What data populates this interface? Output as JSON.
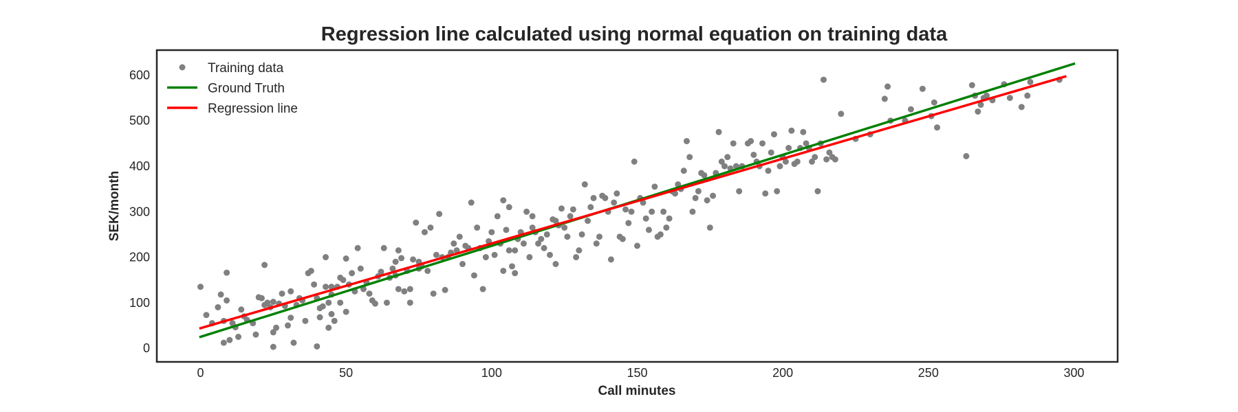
{
  "chart_data": {
    "type": "scatter",
    "title": "Regression line calculated using normal equation on training data",
    "xlabel": "Call minutes",
    "ylabel": "SEK/month",
    "xlim": [
      -15,
      315
    ],
    "ylim": [
      -30,
      655
    ],
    "x_ticks": [
      0,
      50,
      100,
      150,
      200,
      250,
      300
    ],
    "y_ticks": [
      0,
      100,
      200,
      300,
      400,
      500,
      600
    ],
    "grid": false,
    "legend_position": "top-left",
    "series": [
      {
        "name": "Training data",
        "kind": "scatter",
        "color": "#808080",
        "points": [
          [
            0,
            135
          ],
          [
            2,
            73
          ],
          [
            4,
            55
          ],
          [
            6,
            90
          ],
          [
            7,
            118
          ],
          [
            8,
            12
          ],
          [
            8,
            60
          ],
          [
            9,
            105
          ],
          [
            9,
            166
          ],
          [
            10,
            18
          ],
          [
            11,
            55
          ],
          [
            12,
            46
          ],
          [
            13,
            25
          ],
          [
            14,
            85
          ],
          [
            15,
            70
          ],
          [
            16,
            62
          ],
          [
            18,
            55
          ],
          [
            19,
            30
          ],
          [
            20,
            112
          ],
          [
            21,
            110
          ],
          [
            22,
            183
          ],
          [
            22,
            95
          ],
          [
            23,
            100
          ],
          [
            24,
            90
          ],
          [
            25,
            102
          ],
          [
            25,
            35
          ],
          [
            25,
            3
          ],
          [
            26,
            45
          ],
          [
            27,
            98
          ],
          [
            28,
            120
          ],
          [
            29,
            93
          ],
          [
            30,
            50
          ],
          [
            31,
            67
          ],
          [
            31,
            125
          ],
          [
            32,
            12
          ],
          [
            33,
            95
          ],
          [
            34,
            110
          ],
          [
            35,
            105
          ],
          [
            36,
            60
          ],
          [
            37,
            165
          ],
          [
            38,
            170
          ],
          [
            39,
            140
          ],
          [
            40,
            110
          ],
          [
            40,
            4
          ],
          [
            41,
            88
          ],
          [
            41,
            68
          ],
          [
            42,
            92
          ],
          [
            43,
            200
          ],
          [
            43,
            135
          ],
          [
            44,
            100
          ],
          [
            44,
            45
          ],
          [
            45,
            118
          ],
          [
            45,
            75
          ],
          [
            45,
            135
          ],
          [
            46,
            60
          ],
          [
            47,
            135
          ],
          [
            48,
            100
          ],
          [
            48,
            155
          ],
          [
            49,
            150
          ],
          [
            50,
            80
          ],
          [
            50,
            197
          ],
          [
            51,
            140
          ],
          [
            52,
            165
          ],
          [
            53,
            125
          ],
          [
            54,
            220
          ],
          [
            55,
            175
          ],
          [
            56,
            130
          ],
          [
            57,
            145
          ],
          [
            58,
            120
          ],
          [
            59,
            105
          ],
          [
            60,
            98
          ],
          [
            61,
            158
          ],
          [
            62,
            168
          ],
          [
            63,
            220
          ],
          [
            64,
            100
          ],
          [
            65,
            155
          ],
          [
            66,
            175
          ],
          [
            67,
            190
          ],
          [
            67,
            160
          ],
          [
            68,
            215
          ],
          [
            68,
            130
          ],
          [
            69,
            198
          ],
          [
            70,
            125
          ],
          [
            71,
            170
          ],
          [
            72,
            130
          ],
          [
            72,
            100
          ],
          [
            73,
            195
          ],
          [
            74,
            276
          ],
          [
            75,
            190
          ],
          [
            75,
            175
          ],
          [
            76,
            180
          ],
          [
            77,
            255
          ],
          [
            78,
            170
          ],
          [
            79,
            265
          ],
          [
            80,
            120
          ],
          [
            81,
            205
          ],
          [
            82,
            295
          ],
          [
            83,
            200
          ],
          [
            84,
            128
          ],
          [
            85,
            200
          ],
          [
            86,
            210
          ],
          [
            87,
            230
          ],
          [
            88,
            215
          ],
          [
            89,
            245
          ],
          [
            90,
            185
          ],
          [
            91,
            225
          ],
          [
            92,
            220
          ],
          [
            93,
            320
          ],
          [
            94,
            160
          ],
          [
            95,
            265
          ],
          [
            96,
            220
          ],
          [
            97,
            130
          ],
          [
            98,
            200
          ],
          [
            99,
            235
          ],
          [
            100,
            255
          ],
          [
            101,
            205
          ],
          [
            102,
            290
          ],
          [
            103,
            230
          ],
          [
            104,
            170
          ],
          [
            104,
            325
          ],
          [
            105,
            260
          ],
          [
            106,
            215
          ],
          [
            106,
            310
          ],
          [
            107,
            180
          ],
          [
            108,
            165
          ],
          [
            108,
            215
          ],
          [
            109,
            240
          ],
          [
            110,
            255
          ],
          [
            111,
            230
          ],
          [
            112,
            300
          ],
          [
            113,
            200
          ],
          [
            114,
            265
          ],
          [
            114,
            290
          ],
          [
            115,
            255
          ],
          [
            116,
            230
          ],
          [
            117,
            240
          ],
          [
            118,
            220
          ],
          [
            119,
            250
          ],
          [
            120,
            205
          ],
          [
            121,
            283
          ],
          [
            122,
            280
          ],
          [
            122,
            185
          ],
          [
            123,
            270
          ],
          [
            124,
            307
          ],
          [
            125,
            265
          ],
          [
            126,
            245
          ],
          [
            127,
            290
          ],
          [
            128,
            305
          ],
          [
            129,
            200
          ],
          [
            130,
            215
          ],
          [
            131,
            250
          ],
          [
            132,
            360
          ],
          [
            133,
            280
          ],
          [
            134,
            310
          ],
          [
            135,
            330
          ],
          [
            136,
            230
          ],
          [
            137,
            245
          ],
          [
            138,
            335
          ],
          [
            139,
            330
          ],
          [
            140,
            300
          ],
          [
            141,
            195
          ],
          [
            142,
            320
          ],
          [
            143,
            340
          ],
          [
            144,
            245
          ],
          [
            145,
            240
          ],
          [
            146,
            305
          ],
          [
            147,
            275
          ],
          [
            148,
            300
          ],
          [
            149,
            410
          ],
          [
            150,
            225
          ],
          [
            151,
            330
          ],
          [
            152,
            320
          ],
          [
            153,
            285
          ],
          [
            154,
            260
          ],
          [
            155,
            300
          ],
          [
            156,
            355
          ],
          [
            157,
            245
          ],
          [
            158,
            250
          ],
          [
            159,
            300
          ],
          [
            160,
            265
          ],
          [
            161,
            285
          ],
          [
            162,
            345
          ],
          [
            163,
            340
          ],
          [
            164,
            360
          ],
          [
            165,
            350
          ],
          [
            166,
            390
          ],
          [
            167,
            455
          ],
          [
            168,
            420
          ],
          [
            169,
            300
          ],
          [
            170,
            330
          ],
          [
            171,
            345
          ],
          [
            172,
            385
          ],
          [
            173,
            380
          ],
          [
            174,
            325
          ],
          [
            175,
            265
          ],
          [
            176,
            335
          ],
          [
            177,
            385
          ],
          [
            178,
            475
          ],
          [
            179,
            410
          ],
          [
            180,
            400
          ],
          [
            181,
            420
          ],
          [
            182,
            395
          ],
          [
            183,
            450
          ],
          [
            184,
            400
          ],
          [
            185,
            345
          ],
          [
            186,
            400
          ],
          [
            188,
            450
          ],
          [
            189,
            455
          ],
          [
            190,
            425
          ],
          [
            191,
            410
          ],
          [
            192,
            400
          ],
          [
            193,
            450
          ],
          [
            194,
            340
          ],
          [
            195,
            390
          ],
          [
            196,
            430
          ],
          [
            197,
            470
          ],
          [
            198,
            345
          ],
          [
            199,
            400
          ],
          [
            200,
            420
          ],
          [
            201,
            410
          ],
          [
            202,
            440
          ],
          [
            203,
            478
          ],
          [
            204,
            405
          ],
          [
            205,
            410
          ],
          [
            206,
            440
          ],
          [
            207,
            475
          ],
          [
            208,
            450
          ],
          [
            209,
            440
          ],
          [
            210,
            410
          ],
          [
            211,
            420
          ],
          [
            212,
            345
          ],
          [
            213,
            450
          ],
          [
            214,
            590
          ],
          [
            215,
            415
          ],
          [
            216,
            430
          ],
          [
            217,
            420
          ],
          [
            218,
            415
          ],
          [
            220,
            515
          ],
          [
            225,
            460
          ],
          [
            230,
            470
          ],
          [
            235,
            548
          ],
          [
            236,
            575
          ],
          [
            237,
            500
          ],
          [
            242,
            500
          ],
          [
            244,
            525
          ],
          [
            248,
            570
          ],
          [
            251,
            510
          ],
          [
            252,
            540
          ],
          [
            253,
            485
          ],
          [
            263,
            422
          ],
          [
            265,
            578
          ],
          [
            266,
            555
          ],
          [
            267,
            520
          ],
          [
            268,
            535
          ],
          [
            269,
            550
          ],
          [
            270,
            555
          ],
          [
            272,
            545
          ],
          [
            276,
            580
          ],
          [
            278,
            550
          ],
          [
            282,
            530
          ],
          [
            284,
            555
          ],
          [
            285,
            585
          ],
          [
            295,
            590
          ]
        ]
      },
      {
        "name": "Ground Truth",
        "kind": "line",
        "color": "#008000",
        "x": [
          0,
          300
        ],
        "y": [
          25,
          625
        ]
      },
      {
        "name": "Regression line",
        "kind": "line",
        "color": "#ff0000",
        "x": [
          0,
          297
        ],
        "y": [
          44,
          597
        ]
      }
    ]
  }
}
